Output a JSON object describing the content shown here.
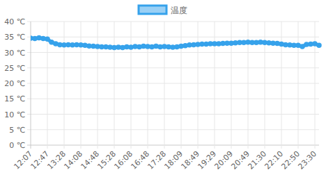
{
  "chart_data": {
    "type": "line",
    "categories": [
      "12:07",
      null,
      null,
      null,
      "12:47",
      null,
      null,
      null,
      "13:28",
      null,
      null,
      null,
      "14:08",
      null,
      null,
      null,
      "14:48",
      null,
      null,
      null,
      "15:28",
      null,
      null,
      null,
      "16:08",
      null,
      null,
      null,
      "16:48",
      null,
      null,
      null,
      "17:28",
      null,
      null,
      null,
      "18:09",
      null,
      null,
      null,
      "18:49",
      null,
      null,
      null,
      "19:29",
      null,
      null,
      null,
      "20:09",
      null,
      null,
      null,
      "20:49",
      null,
      null,
      null,
      "21:30",
      null,
      null,
      null,
      "22:10",
      null,
      null,
      null,
      "22:50",
      null,
      null,
      null,
      "23:30",
      null
    ],
    "series": [
      {
        "name": "温度",
        "color": "#36a2eb",
        "marker": "circle",
        "values": [
          34.6,
          34.5,
          34.7,
          34.5,
          34.3,
          33.3,
          32.8,
          32.5,
          32.4,
          32.5,
          32.4,
          32.5,
          32.4,
          32.3,
          32.1,
          32.0,
          31.9,
          31.8,
          31.8,
          31.7,
          31.6,
          31.7,
          31.6,
          31.8,
          31.7,
          31.9,
          31.8,
          32.0,
          31.9,
          31.8,
          32.0,
          31.8,
          31.9,
          31.8,
          31.7,
          31.8,
          32.0,
          32.2,
          32.4,
          32.5,
          32.6,
          32.7,
          32.7,
          32.8,
          32.8,
          32.8,
          32.9,
          33.0,
          33.0,
          33.1,
          33.2,
          33.2,
          33.3,
          33.2,
          33.2,
          33.3,
          33.2,
          33.1,
          33.0,
          32.9,
          32.7,
          32.5,
          32.4,
          32.3,
          32.3,
          31.9,
          32.6,
          32.7,
          32.8,
          32.3
        ]
      }
    ],
    "ylim": [
      0,
      40
    ],
    "yticks": [
      {
        "value": 0,
        "label": "0 ℃"
      },
      {
        "value": 5,
        "label": "5 ℃"
      },
      {
        "value": 10,
        "label": "10 ℃"
      },
      {
        "value": 15,
        "label": "15 ℃"
      },
      {
        "value": 20,
        "label": "20 ℃"
      },
      {
        "value": 25,
        "label": "25 ℃"
      },
      {
        "value": 30,
        "label": "30 ℃"
      },
      {
        "value": 35,
        "label": "35 ℃"
      },
      {
        "value": 40,
        "label": "40 ℃"
      }
    ],
    "grid": true,
    "legend": "top"
  }
}
